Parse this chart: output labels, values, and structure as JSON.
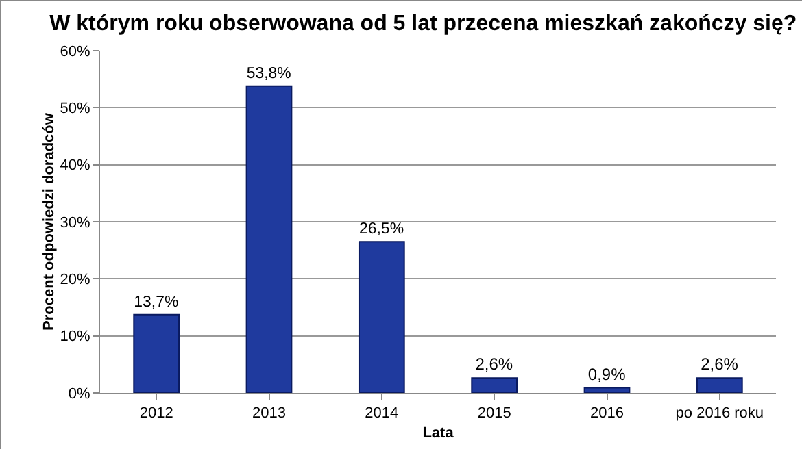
{
  "chart_data": {
    "type": "bar",
    "title": "W którym roku obserwowana od 5 lat przecena mieszkań zakończy się?",
    "xlabel": "Lata",
    "ylabel": "Procent odpowiedzi doradców",
    "categories": [
      "2012",
      "2013",
      "2014",
      "2015",
      "2016",
      "po 2016 roku"
    ],
    "values": [
      13.7,
      53.8,
      26.5,
      2.6,
      0.9,
      2.6
    ],
    "value_labels": [
      "13,7%",
      "53,8%",
      "26,5%",
      "2,6%",
      "0,9%",
      "2,6%"
    ],
    "color": "#1f3a9e",
    "ylim": [
      0,
      60
    ],
    "yticks": [
      {
        "value": 0,
        "label": "0%"
      },
      {
        "value": 10,
        "label": "10%"
      },
      {
        "value": 20,
        "label": "20%"
      },
      {
        "value": 30,
        "label": "30%"
      },
      {
        "value": 40,
        "label": "40%"
      },
      {
        "value": 50,
        "label": "50%"
      },
      {
        "value": 60,
        "label": "60%"
      }
    ],
    "grid": "y"
  }
}
